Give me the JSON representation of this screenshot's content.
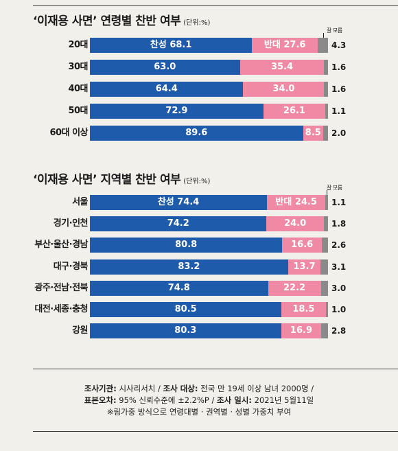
{
  "chart_data": [
    {
      "type": "bar",
      "title": "‘이재용 사면’ 연령별 찬반 여부",
      "unit": "(단위:%)",
      "categories": [
        "20대",
        "30대",
        "40대",
        "50대",
        "60대 이상"
      ],
      "series": [
        {
          "name": "찬성",
          "values": [
            68.1,
            63.0,
            64.4,
            72.9,
            89.6
          ],
          "color": "#1f5bab"
        },
        {
          "name": "반대",
          "values": [
            27.6,
            35.4,
            34.0,
            26.1,
            8.5
          ],
          "color": "#f08aa4"
        },
        {
          "name": "잘 모름",
          "values": [
            4.3,
            1.6,
            1.6,
            1.1,
            2.0
          ],
          "color": "#8a8a8a"
        }
      ],
      "stacked": true,
      "first_row_prefix": true
    },
    {
      "type": "bar",
      "title": "‘이재용 사면’ 지역별 찬반 여부",
      "unit": "(단위:%)",
      "categories": [
        "서울",
        "경기·인천",
        "부산·울산·경남",
        "대구·경북",
        "광주·전남·전북",
        "대전·세종·충청",
        "강원"
      ],
      "series": [
        {
          "name": "찬성",
          "values": [
            74.4,
            74.2,
            80.8,
            83.2,
            74.8,
            80.5,
            80.3
          ],
          "color": "#1f5bab"
        },
        {
          "name": "반대",
          "values": [
            24.5,
            24.0,
            16.6,
            13.7,
            22.2,
            18.5,
            16.9
          ],
          "color": "#f08aa4"
        },
        {
          "name": "잘 모름",
          "values": [
            1.1,
            1.8,
            2.6,
            3.1,
            3.0,
            1.0,
            2.8
          ],
          "color": "#8a8a8a"
        }
      ],
      "stacked": true,
      "first_row_prefix": true
    }
  ],
  "notes": {
    "line1_label1": "조사기관:",
    "line1_text1": " 시사리서치 / ",
    "line1_label2": "조사 대상:",
    "line1_text2": " 전국 만 19세 이상 남녀 2000명 /",
    "line2_label1": "표본오차:",
    "line2_text1": " 95% 신뢰수준에 ±2.2%P / ",
    "line2_label2": "조사 일시:",
    "line2_text2": " 2021년 5월11일",
    "line3": "※림가중 방식으로 연령대별 · 권역별 · 성별 가중치 부여"
  }
}
